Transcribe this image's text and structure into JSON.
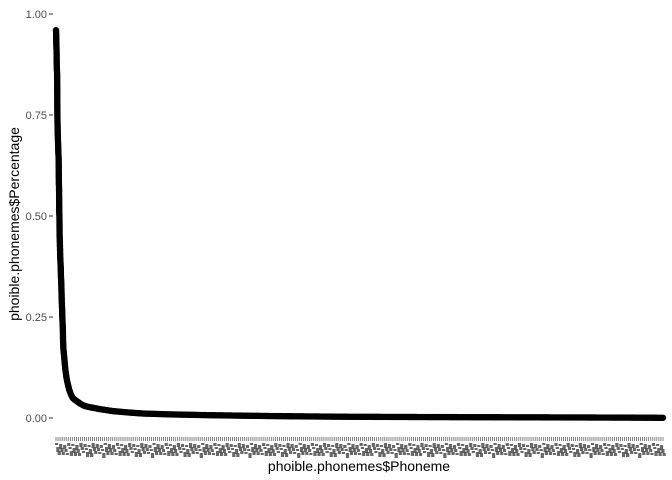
{
  "chart_data": {
    "type": "scatter",
    "title": "",
    "xlabel": "phoible.phonemes$Phoneme",
    "ylabel": "phoible.phonemes$Percentage",
    "ylim": [
      0,
      1
    ],
    "yticks": [
      "0.00",
      "0.25",
      "0.50",
      "0.75",
      "1.00"
    ],
    "x_is_categorical": true,
    "x_category_count": 3183,
    "x_tick_labels_legible": false,
    "grid": false,
    "legend": "none",
    "point_color": "#000000",
    "series": [
      {
        "name": "",
        "note": "values sorted in descending order across phoneme categories",
        "points": [
          [
            1,
            0.96
          ],
          [
            2,
            0.95
          ],
          [
            3,
            0.92
          ],
          [
            4,
            0.91
          ],
          [
            5,
            0.87
          ],
          [
            6,
            0.86
          ],
          [
            7,
            0.85
          ],
          [
            8,
            0.76
          ],
          [
            9,
            0.73
          ],
          [
            10,
            0.71
          ],
          [
            11,
            0.69
          ],
          [
            12,
            0.68
          ],
          [
            13,
            0.66
          ],
          [
            14,
            0.65
          ],
          [
            15,
            0.64
          ],
          [
            16,
            0.58
          ],
          [
            17,
            0.57
          ],
          [
            18,
            0.51
          ],
          [
            19,
            0.5
          ],
          [
            20,
            0.45
          ],
          [
            21,
            0.44
          ],
          [
            22,
            0.42
          ],
          [
            23,
            0.4
          ],
          [
            24,
            0.39
          ],
          [
            25,
            0.38
          ],
          [
            26,
            0.37
          ],
          [
            27,
            0.35
          ],
          [
            28,
            0.34
          ],
          [
            29,
            0.33
          ],
          [
            30,
            0.31
          ],
          [
            31,
            0.29
          ],
          [
            32,
            0.28
          ],
          [
            33,
            0.27
          ],
          [
            34,
            0.25
          ],
          [
            35,
            0.24
          ],
          [
            36,
            0.23
          ],
          [
            37,
            0.22
          ],
          [
            38,
            0.19
          ],
          [
            39,
            0.18
          ],
          [
            40,
            0.17
          ],
          [
            42,
            0.16
          ],
          [
            44,
            0.15
          ],
          [
            46,
            0.14
          ],
          [
            48,
            0.13
          ],
          [
            50,
            0.12
          ],
          [
            53,
            0.11
          ],
          [
            56,
            0.1
          ],
          [
            60,
            0.09
          ],
          [
            65,
            0.08
          ],
          [
            70,
            0.07
          ],
          [
            78,
            0.06
          ],
          [
            88,
            0.05
          ],
          [
            100,
            0.045
          ],
          [
            115,
            0.04
          ],
          [
            130,
            0.035
          ],
          [
            150,
            0.03
          ],
          [
            175,
            0.027
          ],
          [
            200,
            0.025
          ],
          [
            230,
            0.022
          ],
          [
            260,
            0.02
          ],
          [
            300,
            0.017
          ],
          [
            350,
            0.015
          ],
          [
            400,
            0.013
          ],
          [
            460,
            0.011
          ],
          [
            530,
            0.01
          ],
          [
            600,
            0.009
          ],
          [
            700,
            0.008
          ],
          [
            800,
            0.007
          ],
          [
            950,
            0.006
          ],
          [
            1100,
            0.005
          ],
          [
            1300,
            0.004
          ],
          [
            1550,
            0.003
          ],
          [
            1850,
            0.0025
          ],
          [
            2200,
            0.002
          ],
          [
            2600,
            0.0015
          ],
          [
            3000,
            0.001
          ],
          [
            3183,
            0.0005
          ]
        ]
      }
    ]
  }
}
